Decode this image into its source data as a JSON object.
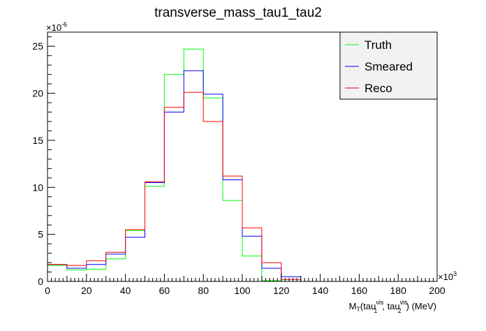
{
  "chart_data": {
    "type": "histogram",
    "title": "transverse_mass_tau1_tau2",
    "xlabel": {
      "prefix": "M",
      "prefix_sub": "T",
      "open": "(tau",
      "sub1": "1",
      "sup1": "vis",
      "mid": ", tau",
      "sub2": "2",
      "sup2": "vis",
      "close": ") (MeV)"
    },
    "ylabel": "",
    "x_multiplier": "×10",
    "x_multiplier_exp": "3",
    "y_multiplier": "×10",
    "y_multiplier_exp": "-6",
    "xlim": [
      0,
      200
    ],
    "ylim": [
      0,
      26.5
    ],
    "x_ticks": [
      0,
      20,
      40,
      60,
      80,
      100,
      120,
      140,
      160,
      180,
      200
    ],
    "y_ticks": [
      0,
      5,
      10,
      15,
      20,
      25
    ],
    "bin_edges": [
      0,
      10,
      20,
      30,
      40,
      50,
      60,
      70,
      80,
      90,
      100,
      110,
      120,
      130,
      140,
      150,
      160,
      170,
      180,
      190,
      200
    ],
    "series": [
      {
        "name": "Truth",
        "color": "#00ff00",
        "values": [
          1.7,
          1.2,
          1.3,
          2.4,
          5.4,
          10.1,
          22.0,
          24.7,
          19.5,
          8.6,
          2.7,
          0.1,
          0,
          0,
          0,
          0,
          0,
          0,
          0,
          0
        ]
      },
      {
        "name": "Smeared",
        "color": "#0000ff",
        "values": [
          1.8,
          1.4,
          1.8,
          2.9,
          4.7,
          10.5,
          18.0,
          22.4,
          19.9,
          10.8,
          4.8,
          1.4,
          0.5,
          0,
          0,
          0,
          0,
          0,
          0,
          0
        ]
      },
      {
        "name": "Reco",
        "color": "#ff0000",
        "values": [
          1.8,
          1.7,
          2.2,
          3.1,
          5.5,
          10.6,
          18.5,
          20.1,
          17.0,
          11.2,
          5.7,
          2.0,
          0.2,
          0,
          0,
          0,
          0,
          0,
          0,
          0
        ]
      }
    ],
    "legend": {
      "position": "top-right",
      "background": "#f2f2f2"
    },
    "grid": false
  }
}
